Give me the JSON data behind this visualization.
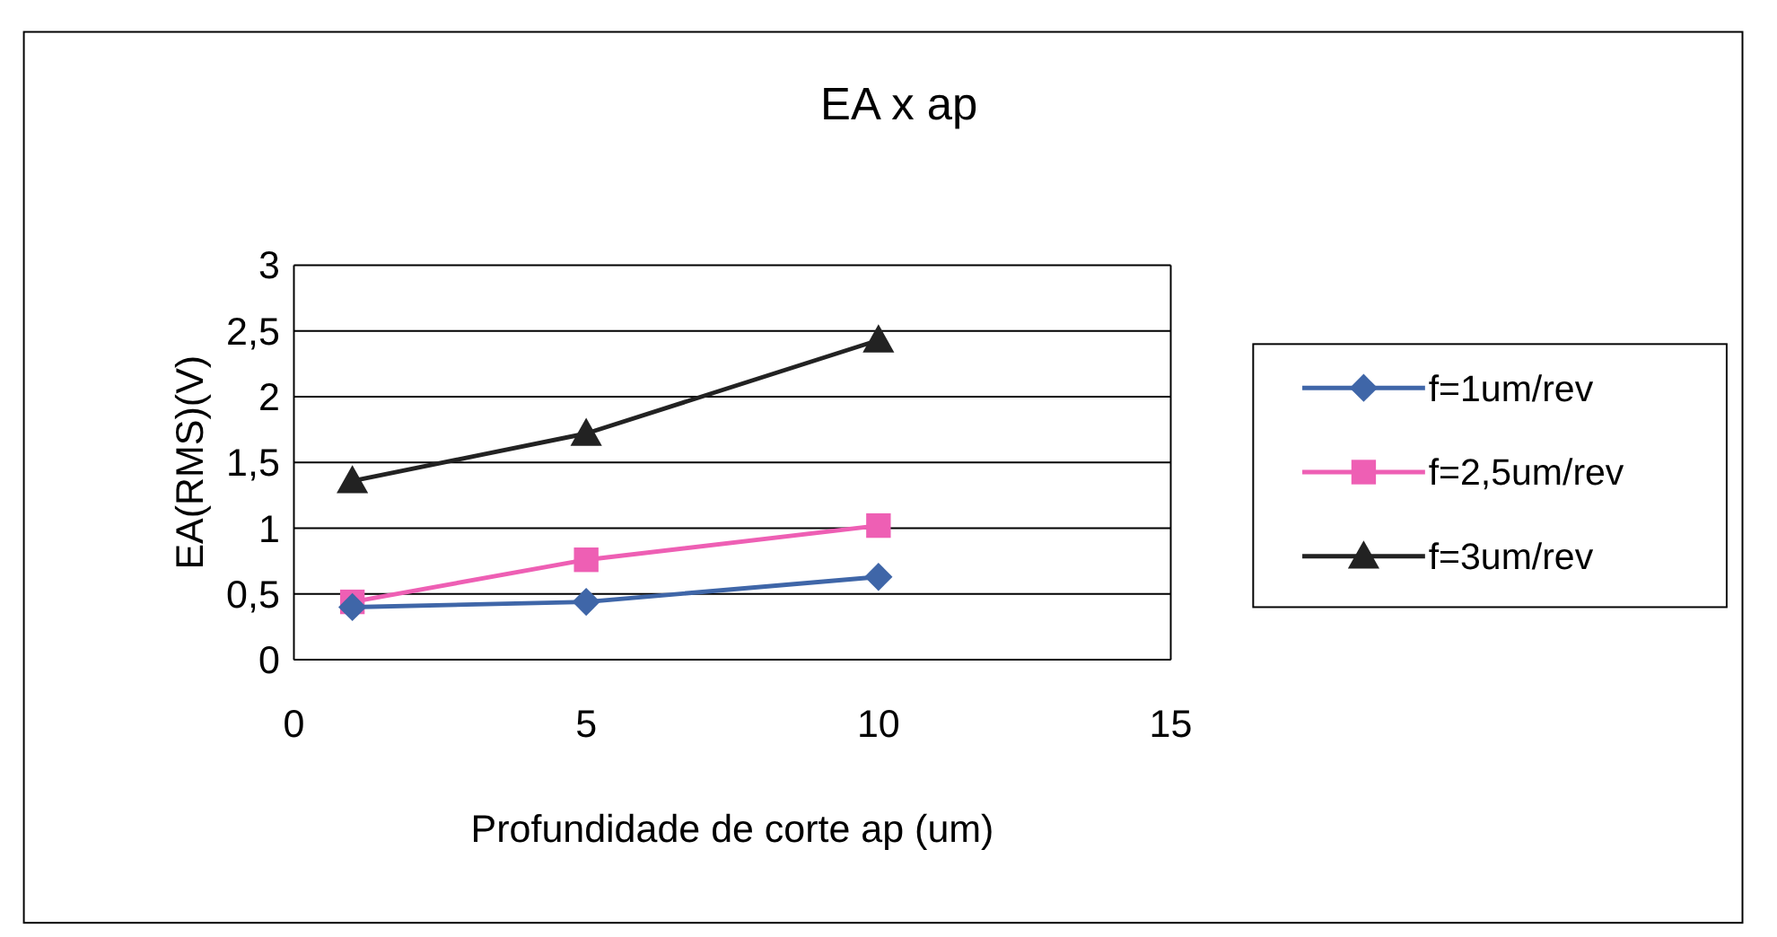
{
  "chart_data": {
    "type": "line",
    "title": "EA x ap",
    "xlabel": "Profundidade de corte ap (um)",
    "ylabel": "EA(RMS)(V)",
    "x": [
      1,
      5,
      10
    ],
    "series": [
      {
        "name": "f=1um/rev",
        "color": "#3f66a8",
        "marker": "diamond",
        "values": [
          0.4,
          0.44,
          0.63
        ]
      },
      {
        "name": "f=2,5um/rev",
        "color": "#ee5fb4",
        "marker": "square",
        "values": [
          0.44,
          0.76,
          1.02
        ]
      },
      {
        "name": "f=3um/rev",
        "color": "#222222",
        "marker": "triangle",
        "values": [
          1.36,
          1.72,
          2.43
        ]
      }
    ],
    "xlim": [
      0,
      15
    ],
    "xticks": [
      0,
      5,
      10,
      15
    ],
    "ylim": [
      0,
      3
    ],
    "yticks": [
      0,
      {
        "value": 0.5,
        "label": "0,5"
      },
      1,
      {
        "value": 1.5,
        "label": "1,5"
      },
      2,
      {
        "value": 2.5,
        "label": "2,5"
      },
      3
    ],
    "grid": "y",
    "legend": "right"
  }
}
